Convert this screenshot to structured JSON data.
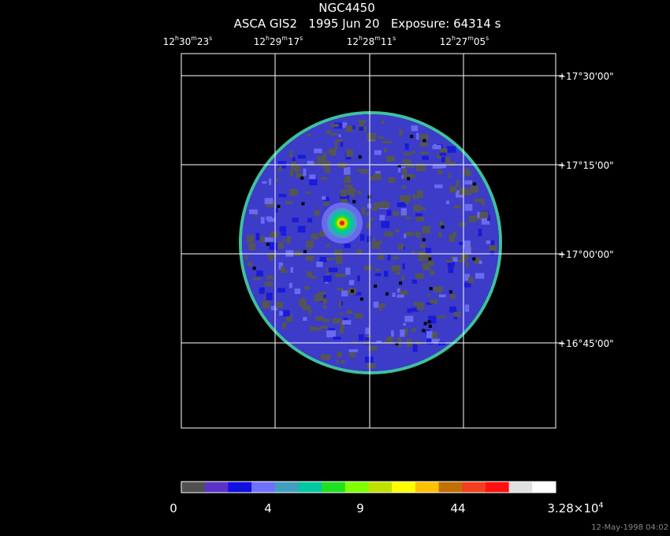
{
  "header": {
    "object": "NGC4450",
    "info": "ASCA GIS2   1995 Jun 20   Exposure: 64314 s"
  },
  "ra_labels": [
    [
      "12",
      "h",
      "30",
      "m",
      "23",
      "s"
    ],
    [
      "12",
      "h",
      "29",
      "m",
      "17",
      "s"
    ],
    [
      "12",
      "h",
      "28",
      "m",
      "11",
      "s"
    ],
    [
      "12",
      "h",
      "27",
      "m",
      "05",
      "s"
    ]
  ],
  "dec_labels": [
    "+17°30'00\"",
    "+17°15'00\"",
    "+17°00'00\"",
    "+16°45'00\""
  ],
  "colorbar_labels": [
    [
      "0"
    ],
    [
      "4"
    ],
    [
      "9"
    ],
    [
      "44"
    ],
    [
      "3.28×10",
      "4"
    ]
  ],
  "footer": {
    "timestamp": "12-May-1998 04:02"
  }
}
